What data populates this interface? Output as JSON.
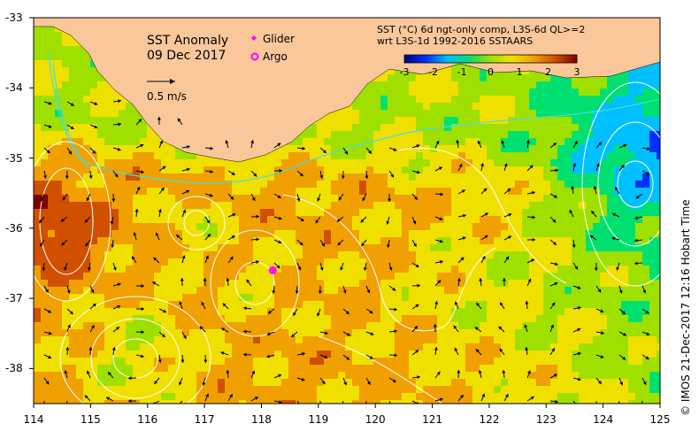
{
  "map": {
    "title": "SST Anomaly",
    "date": "09 Dec 2017",
    "vector_scale_label": "0.5 m/s",
    "legend": [
      {
        "name": "Glider",
        "color": "#ff00ff",
        "symbol": "diamond-icon"
      },
      {
        "name": "Argo",
        "color": "#ff00ff",
        "symbol": "circle-icon"
      }
    ],
    "product_line1": "SST (°C) 6d ngt-only comp, L3S-6d QL>=2",
    "product_line2": "wrt L3S-1d 1992-2016 SSTAARS",
    "credit": "© IMOS 21-Dec-2017 12:16 Hobart Time",
    "colors": {
      "land": "#f9c79a",
      "coast_current_contour": "#40e0e0",
      "ssh_contour": "#ffffff",
      "arrows": "#000000",
      "missing": "#ffffff"
    },
    "colorbar": {
      "min": -3,
      "max": 3,
      "ticks": [
        "-3",
        "-2",
        "-1",
        "0",
        "1",
        "2",
        "3"
      ],
      "stops": [
        "#000080",
        "#0030ff",
        "#00c0ff",
        "#00e070",
        "#a0e000",
        "#f0e000",
        "#f0a000",
        "#d05000",
        "#800000"
      ]
    },
    "x_axis": {
      "min": 114,
      "max": 125,
      "ticks": [
        "114",
        "115",
        "116",
        "117",
        "118",
        "119",
        "120",
        "121",
        "122",
        "123",
        "124",
        "125"
      ]
    },
    "y_axis": {
      "min": -38.5,
      "max": -33,
      "ticks": [
        "-33",
        "-34",
        "-35",
        "-36",
        "-37",
        "-38"
      ]
    },
    "glider": {
      "lon": 118.2,
      "lat": -36.6
    },
    "argo": {
      "lon": 118.2,
      "lat": -36.6
    }
  }
}
